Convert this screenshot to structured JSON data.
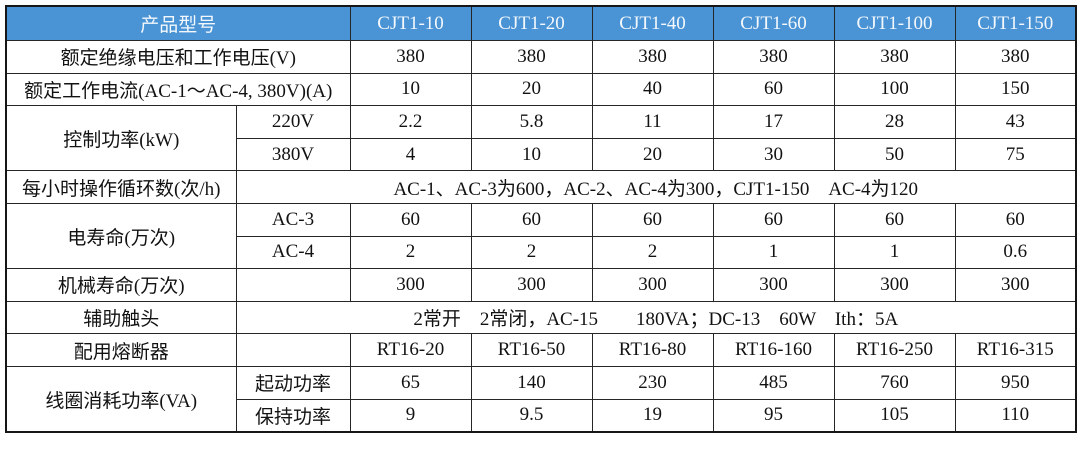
{
  "table": {
    "header": {
      "model_label": "产品型号",
      "models": [
        "CJT1-10",
        "CJT1-20",
        "CJT1-40",
        "CJT1-60",
        "CJT1-100",
        "CJT1-150"
      ]
    },
    "rows": {
      "insulation_voltage": {
        "label": "额定绝缘电压和工作电压(V)",
        "values": [
          "380",
          "380",
          "380",
          "380",
          "380",
          "380"
        ]
      },
      "rated_current": {
        "label": "额定工作电流(AC-1～AC-4, 380V)(A)",
        "values": [
          "10",
          "20",
          "40",
          "60",
          "100",
          "150"
        ]
      },
      "control_power": {
        "label": "控制功率(kW)",
        "sub": [
          {
            "label": "220V",
            "values": [
              "2.2",
              "5.8",
              "11",
              "17",
              "28",
              "43"
            ]
          },
          {
            "label": "380V",
            "values": [
              "4",
              "10",
              "20",
              "30",
              "50",
              "75"
            ]
          }
        ]
      },
      "cycles_per_hour": {
        "label": "每小时操作循环数(次/h)",
        "value": "AC-1、AC-3为600，AC-2、AC-4为300，CJT1-150　AC-4为120"
      },
      "electrical_life": {
        "label": "电寿命(万次)",
        "sub": [
          {
            "label": "AC-3",
            "values": [
              "60",
              "60",
              "60",
              "60",
              "60",
              "60"
            ]
          },
          {
            "label": "AC-4",
            "values": [
              "2",
              "2",
              "2",
              "1",
              "1",
              "0.6"
            ]
          }
        ]
      },
      "mechanical_life": {
        "label": "机械寿命(万次)",
        "values": [
          "300",
          "300",
          "300",
          "300",
          "300",
          "300"
        ]
      },
      "auxiliary_contacts": {
        "label": "辅助触头",
        "value": "2常开　2常闭，AC-15　　180VA；DC-13　60W　Ith：5A"
      },
      "fuse": {
        "label": "配用熔断器",
        "values": [
          "RT16-20",
          "RT16-50",
          "RT16-80",
          "RT16-160",
          "RT16-250",
          "RT16-315"
        ]
      },
      "coil_power": {
        "label": "线圈消耗功率(VA)",
        "sub": [
          {
            "label": "起动功率",
            "values": [
              "65",
              "140",
              "230",
              "485",
              "760",
              "950"
            ]
          },
          {
            "label": "保持功率",
            "values": [
              "9",
              "9.5",
              "19",
              "95",
              "105",
              "110"
            ]
          }
        ]
      }
    },
    "colors": {
      "header_bg": "#4a93d5",
      "header_text": "#f3f8fc",
      "border": "#262626"
    }
  }
}
